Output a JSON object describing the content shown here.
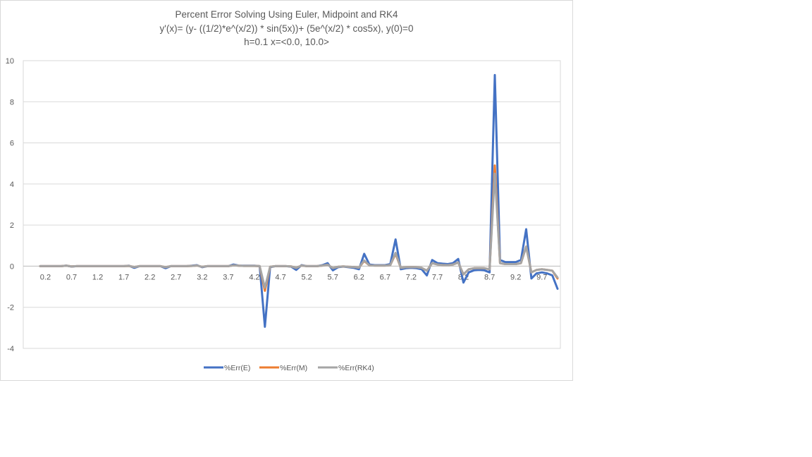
{
  "chart_data": {
    "type": "line",
    "title": "Percent Error Solving Using Euler, Midpoint and RK4",
    "subtitle": "y'(x)= (y- ((1/2)*e^(x/2)) * sin(5x))+ (5e^(x/2) * cos5x), y(0)=0",
    "subtitle2": "h=0.1  x=<0.0, 10.0>",
    "xlabel": "",
    "ylabel": "",
    "ylim": [
      -4,
      10
    ],
    "yticks": [
      "10",
      "8",
      "6",
      "4",
      "2",
      "0",
      "-2",
      "-4"
    ],
    "xticks": [
      "0.2",
      "0.7",
      "1.2",
      "1.7",
      "2.2",
      "2.7",
      "3.2",
      "3.7",
      "4.2",
      "4.7",
      "5.2",
      "5.7",
      "6.2",
      "6.7",
      "7.2",
      "7.7",
      "8.2",
      "8.7",
      "9.2",
      "9.7"
    ],
    "grid": true,
    "legend_position": "bottom",
    "x": [
      0.1,
      0.2,
      0.3,
      0.4,
      0.5,
      0.6,
      0.7,
      0.8,
      0.9,
      1.0,
      1.1,
      1.2,
      1.3,
      1.4,
      1.5,
      1.6,
      1.7,
      1.8,
      1.9,
      2.0,
      2.1,
      2.2,
      2.3,
      2.4,
      2.5,
      2.6,
      2.7,
      2.8,
      2.9,
      3.0,
      3.1,
      3.2,
      3.3,
      3.4,
      3.5,
      3.6,
      3.7,
      3.8,
      3.9,
      4.0,
      4.1,
      4.2,
      4.3,
      4.4,
      4.5,
      4.6,
      4.7,
      4.8,
      4.9,
      5.0,
      5.1,
      5.2,
      5.3,
      5.4,
      5.5,
      5.6,
      5.7,
      5.8,
      5.9,
      6.0,
      6.1,
      6.2,
      6.3,
      6.4,
      6.5,
      6.6,
      6.7,
      6.8,
      6.9,
      7.0,
      7.1,
      7.2,
      7.3,
      7.4,
      7.5,
      7.6,
      7.7,
      7.8,
      7.9,
      8.0,
      8.1,
      8.2,
      8.3,
      8.4,
      8.5,
      8.6,
      8.7,
      8.8,
      8.9,
      9.0,
      9.1,
      9.2,
      9.3,
      9.4,
      9.5,
      9.6,
      9.7,
      9.8,
      9.9,
      10.0
    ],
    "series": [
      {
        "name": "%Err(E)",
        "color": "#4472c4",
        "values": [
          0,
          0,
          0,
          0,
          0,
          0.03,
          -0.02,
          0,
          0,
          0,
          0,
          0,
          0,
          0,
          0,
          0,
          0,
          0.02,
          -0.08,
          0,
          0,
          0,
          0,
          0,
          -0.1,
          0,
          0,
          0,
          0,
          0.02,
          0.05,
          -0.05,
          0,
          0,
          0,
          0,
          0,
          0.08,
          0.03,
          0.02,
          0.02,
          0.02,
          0,
          -2.95,
          -0.05,
          0,
          0,
          0,
          -0.02,
          -0.18,
          0.05,
          0,
          0,
          0,
          0.05,
          0.15,
          -0.2,
          -0.05,
          -0.02,
          -0.05,
          -0.08,
          -0.15,
          0.6,
          0.08,
          0.05,
          0.05,
          0.05,
          0.1,
          1.3,
          -0.15,
          -0.1,
          -0.08,
          -0.1,
          -0.15,
          -0.45,
          0.3,
          0.15,
          0.12,
          0.1,
          0.15,
          0.35,
          -0.8,
          -0.3,
          -0.2,
          -0.18,
          -0.2,
          -0.3,
          9.3,
          0.3,
          0.2,
          0.2,
          0.2,
          0.3,
          1.8,
          -0.6,
          -0.35,
          -0.3,
          -0.35,
          -0.45,
          -1.1
        ]
      },
      {
        "name": "%Err(M)",
        "color": "#ed7d31",
        "values": [
          0,
          0,
          0,
          0,
          0,
          0.02,
          -0.01,
          0,
          0,
          0,
          0,
          0,
          0,
          0,
          0,
          0,
          0,
          0.01,
          -0.04,
          0,
          0,
          0,
          0,
          0,
          -0.05,
          0,
          0,
          0,
          0,
          0.01,
          0.03,
          -0.03,
          0,
          0,
          0,
          0,
          0,
          0.04,
          0.02,
          0.01,
          0.01,
          0.01,
          0,
          -1.2,
          -0.03,
          0,
          0,
          0,
          -0.01,
          -0.08,
          0.03,
          0,
          0,
          0,
          0.03,
          0.07,
          -0.09,
          -0.03,
          -0.01,
          -0.03,
          -0.04,
          -0.07,
          0.25,
          0.04,
          0.03,
          0.03,
          0.03,
          0.05,
          0.6,
          -0.08,
          -0.05,
          -0.04,
          -0.05,
          -0.08,
          -0.22,
          0.15,
          0.08,
          0.06,
          0.05,
          0.08,
          0.18,
          -0.4,
          -0.15,
          -0.1,
          -0.09,
          -0.1,
          -0.15,
          4.9,
          0.15,
          0.1,
          0.1,
          0.1,
          0.15,
          0.95,
          -0.3,
          -0.18,
          -0.15,
          -0.18,
          -0.22,
          -0.6
        ]
      },
      {
        "name": "%Err(RK4)",
        "color": "#a5a5a5",
        "values": [
          0,
          0,
          0,
          0,
          0,
          0.02,
          -0.01,
          0,
          0,
          0,
          0,
          0,
          0,
          0,
          0,
          0,
          0,
          0.01,
          -0.04,
          0,
          0,
          0,
          0,
          0,
          -0.05,
          0,
          0,
          0,
          0,
          0.01,
          0.03,
          -0.03,
          0,
          0,
          0,
          0,
          0,
          0.04,
          0.02,
          0.01,
          0.01,
          0.01,
          0,
          -1.05,
          -0.03,
          0,
          0,
          0,
          -0.01,
          -0.08,
          0.03,
          0,
          0,
          0,
          0.03,
          0.07,
          -0.09,
          -0.03,
          -0.01,
          -0.03,
          -0.04,
          -0.07,
          0.28,
          0.04,
          0.03,
          0.03,
          0.03,
          0.05,
          0.65,
          -0.08,
          -0.05,
          -0.04,
          -0.05,
          -0.08,
          -0.22,
          0.15,
          0.08,
          0.06,
          0.05,
          0.08,
          0.18,
          -0.4,
          -0.15,
          -0.1,
          -0.09,
          -0.1,
          -0.15,
          4.5,
          0.15,
          0.1,
          0.1,
          0.1,
          0.15,
          0.95,
          -0.3,
          -0.18,
          -0.15,
          -0.18,
          -0.22,
          -0.55
        ]
      }
    ]
  }
}
